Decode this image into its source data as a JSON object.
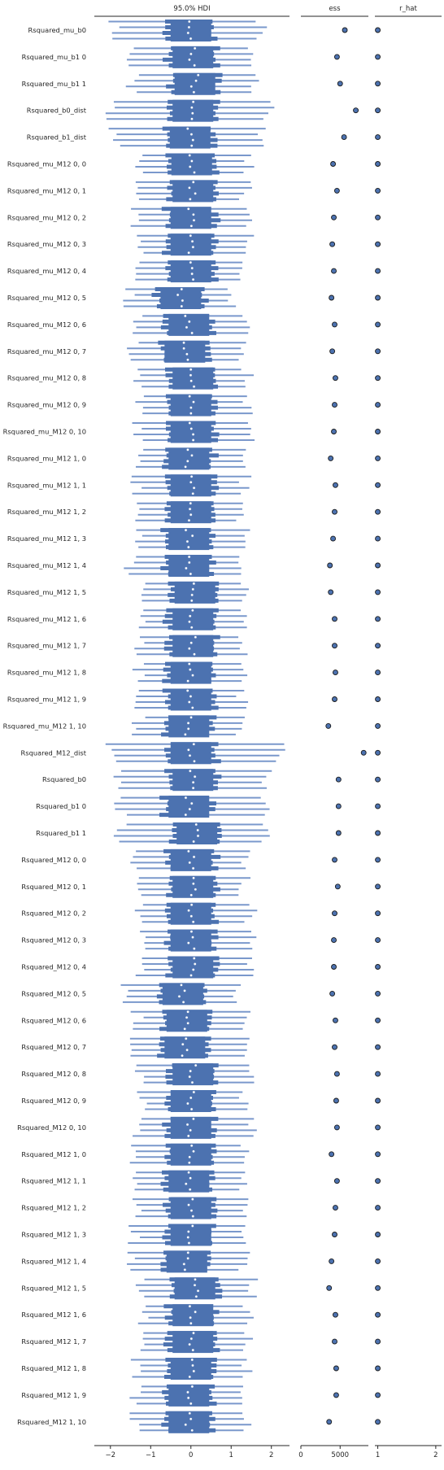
{
  "chart_data": {
    "type": "forest",
    "panels": [
      {
        "title": "95.0% HDI",
        "xticks": [
          -2,
          -1,
          0,
          1,
          2
        ],
        "xlim": [
          -2.4,
          2.45
        ]
      },
      {
        "title": "ess",
        "xticks": [
          0,
          5000
        ],
        "xlim": [
          0,
          8600
        ]
      },
      {
        "title": "r_hat",
        "xticks": [
          1,
          2
        ],
        "xlim": [
          0.95,
          2.1
        ]
      }
    ],
    "colors": {
      "hdi": "#4c72b0",
      "hdi_light": "#7a98cc",
      "median_point": "#ffffff",
      "marker_edge": "#1a1a1a",
      "axis": "#262626"
    },
    "rows": [
      {
        "label": "Rsquared_mu_b0",
        "median": 0.0,
        "hdi": [
          -1.95,
          1.75
        ],
        "ess": 5600,
        "r_hat": 1.0
      },
      {
        "label": "Rsquared_mu_b1 0",
        "median": 0.05,
        "hdi": [
          -1.5,
          1.55
        ],
        "ess": 4600,
        "r_hat": 1.0
      },
      {
        "label": "Rsquared_mu_b1 1",
        "median": 0.1,
        "hdi": [
          -1.45,
          1.55
        ],
        "ess": 5000,
        "r_hat": 1.0
      },
      {
        "label": "Rsquared_b0_dist",
        "median": 0.05,
        "hdi": [
          -2.05,
          1.95
        ],
        "ess": 7000,
        "r_hat": 1.0
      },
      {
        "label": "Rsquared_b1_dist",
        "median": -0.02,
        "hdi": [
          -1.9,
          1.8
        ],
        "ess": 5500,
        "r_hat": 1.0
      },
      {
        "label": "Rsquared_mu_M12 0, 0",
        "median": 0.02,
        "hdi": [
          -1.35,
          1.4
        ],
        "ess": 4100,
        "r_hat": 1.0
      },
      {
        "label": "Rsquared_mu_M12 0, 1",
        "median": 0.05,
        "hdi": [
          -1.2,
          1.35
        ],
        "ess": 4600,
        "r_hat": 1.0
      },
      {
        "label": "Rsquared_mu_M12 0, 2",
        "median": 0.0,
        "hdi": [
          -1.35,
          1.45
        ],
        "ess": 4200,
        "r_hat": 1.0
      },
      {
        "label": "Rsquared_mu_M12 0, 3",
        "median": 0.0,
        "hdi": [
          -1.3,
          1.4
        ],
        "ess": 4000,
        "r_hat": 1.0
      },
      {
        "label": "Rsquared_mu_M12 0, 4",
        "median": 0.0,
        "hdi": [
          -1.25,
          1.35
        ],
        "ess": 4200,
        "r_hat": 1.0
      },
      {
        "label": "Rsquared_mu_M12 0, 5",
        "median": -0.25,
        "hdi": [
          -1.55,
          1.05
        ],
        "ess": 3900,
        "r_hat": 1.0
      },
      {
        "label": "Rsquared_mu_M12 0, 6",
        "median": -0.05,
        "hdi": [
          -1.35,
          1.35
        ],
        "ess": 4300,
        "r_hat": 1.0
      },
      {
        "label": "Rsquared_mu_M12 0, 7",
        "median": -0.15,
        "hdi": [
          -1.45,
          1.3
        ],
        "ess": 4000,
        "r_hat": 1.0
      },
      {
        "label": "Rsquared_mu_M12 0, 8",
        "median": 0.05,
        "hdi": [
          -1.35,
          1.4
        ],
        "ess": 4400,
        "r_hat": 1.0
      },
      {
        "label": "Rsquared_mu_M12 0, 9",
        "median": 0.0,
        "hdi": [
          -1.25,
          1.45
        ],
        "ess": 4300,
        "r_hat": 1.0
      },
      {
        "label": "Rsquared_mu_M12 0, 10",
        "median": 0.0,
        "hdi": [
          -1.3,
          1.55
        ],
        "ess": 4200,
        "r_hat": 1.0
      },
      {
        "label": "Rsquared_mu_M12 1, 0",
        "median": -0.05,
        "hdi": [
          -1.35,
          1.35
        ],
        "ess": 3800,
        "r_hat": 1.0
      },
      {
        "label": "Rsquared_mu_M12 1, 1",
        "median": 0.0,
        "hdi": [
          -1.35,
          1.35
        ],
        "ess": 4400,
        "r_hat": 1.0
      },
      {
        "label": "Rsquared_mu_M12 1, 2",
        "median": 0.0,
        "hdi": [
          -1.35,
          1.3
        ],
        "ess": 4300,
        "r_hat": 1.0
      },
      {
        "label": "Rsquared_mu_M12 1, 3",
        "median": -0.05,
        "hdi": [
          -1.35,
          1.4
        ],
        "ess": 4100,
        "r_hat": 1.0
      },
      {
        "label": "Rsquared_mu_M12 1, 4",
        "median": -0.05,
        "hdi": [
          -1.5,
          1.35
        ],
        "ess": 3700,
        "r_hat": 1.0
      },
      {
        "label": "Rsquared_mu_M12 1, 5",
        "median": 0.1,
        "hdi": [
          -1.15,
          1.4
        ],
        "ess": 3800,
        "r_hat": 1.0
      },
      {
        "label": "Rsquared_mu_M12 1, 6",
        "median": 0.05,
        "hdi": [
          -1.25,
          1.35
        ],
        "ess": 4300,
        "r_hat": 1.0
      },
      {
        "label": "Rsquared_mu_M12 1, 7",
        "median": 0.05,
        "hdi": [
          -1.25,
          1.3
        ],
        "ess": 4300,
        "r_hat": 1.0
      },
      {
        "label": "Rsquared_mu_M12 1, 8",
        "median": 0.0,
        "hdi": [
          -1.3,
          1.25
        ],
        "ess": 4400,
        "r_hat": 1.0
      },
      {
        "label": "Rsquared_mu_M12 1, 9",
        "median": 0.0,
        "hdi": [
          -1.3,
          1.25
        ],
        "ess": 4300,
        "r_hat": 1.0
      },
      {
        "label": "Rsquared_mu_M12 1, 10",
        "median": -0.05,
        "hdi": [
          -1.3,
          1.25
        ],
        "ess": 3500,
        "r_hat": 1.0
      },
      {
        "label": "Rsquared_M12_dist",
        "median": 0.0,
        "hdi": [
          -2.0,
          2.2
        ],
        "ess": 8000,
        "r_hat": 1.0
      },
      {
        "label": "Rsquared_b0",
        "median": 0.05,
        "hdi": [
          -1.75,
          1.85
        ],
        "ess": 4800,
        "r_hat": 1.0
      },
      {
        "label": "Rsquared_b1 0",
        "median": -0.05,
        "hdi": [
          -1.75,
          1.85
        ],
        "ess": 4800,
        "r_hat": 1.0
      },
      {
        "label": "Rsquared_b1 1",
        "median": 0.15,
        "hdi": [
          -1.75,
          1.9
        ],
        "ess": 4800,
        "r_hat": 1.0
      },
      {
        "label": "Rsquared_M12 0, 0",
        "median": 0.0,
        "hdi": [
          -1.35,
          1.4
        ],
        "ess": 4300,
        "r_hat": 1.0
      },
      {
        "label": "Rsquared_M12 0, 1",
        "median": 0.05,
        "hdi": [
          -1.25,
          1.35
        ],
        "ess": 4700,
        "r_hat": 1.0
      },
      {
        "label": "Rsquared_M12 0, 2",
        "median": 0.0,
        "hdi": [
          -1.35,
          1.5
        ],
        "ess": 4300,
        "r_hat": 1.0
      },
      {
        "label": "Rsquared_M12 0, 3",
        "median": 0.0,
        "hdi": [
          -1.3,
          1.55
        ],
        "ess": 4200,
        "r_hat": 1.0
      },
      {
        "label": "Rsquared_M12 0, 4",
        "median": 0.05,
        "hdi": [
          -1.3,
          1.45
        ],
        "ess": 4200,
        "r_hat": 1.0
      },
      {
        "label": "Rsquared_M12 0, 5",
        "median": -0.2,
        "hdi": [
          -1.6,
          1.15
        ],
        "ess": 4000,
        "r_hat": 1.0
      },
      {
        "label": "Rsquared_M12 0, 6",
        "median": -0.1,
        "hdi": [
          -1.35,
          1.35
        ],
        "ess": 4400,
        "r_hat": 1.0
      },
      {
        "label": "Rsquared_M12 0, 7",
        "median": -0.15,
        "hdi": [
          -1.45,
          1.3
        ],
        "ess": 4300,
        "r_hat": 1.0
      },
      {
        "label": "Rsquared_M12 0, 8",
        "median": 0.05,
        "hdi": [
          -1.3,
          1.4
        ],
        "ess": 4600,
        "r_hat": 1.0
      },
      {
        "label": "Rsquared_M12 0, 9",
        "median": 0.0,
        "hdi": [
          -1.25,
          1.35
        ],
        "ess": 4500,
        "r_hat": 1.0
      },
      {
        "label": "Rsquared_M12 0, 10",
        "median": 0.0,
        "hdi": [
          -1.3,
          1.5
        ],
        "ess": 4600,
        "r_hat": 1.0
      },
      {
        "label": "Rsquared_M12 1, 0",
        "median": 0.0,
        "hdi": [
          -1.4,
          1.4
        ],
        "ess": 3900,
        "r_hat": 1.0
      },
      {
        "label": "Rsquared_M12 1, 1",
        "median": -0.05,
        "hdi": [
          -1.3,
          1.35
        ],
        "ess": 4600,
        "r_hat": 1.0
      },
      {
        "label": "Rsquared_M12 1, 2",
        "median": 0.0,
        "hdi": [
          -1.3,
          1.3
        ],
        "ess": 4400,
        "r_hat": 1.0
      },
      {
        "label": "Rsquared_M12 1, 3",
        "median": 0.0,
        "hdi": [
          -1.4,
          1.35
        ],
        "ess": 4300,
        "r_hat": 1.0
      },
      {
        "label": "Rsquared_M12 1, 4",
        "median": -0.1,
        "hdi": [
          -1.5,
          1.35
        ],
        "ess": 3900,
        "r_hat": 1.0
      },
      {
        "label": "Rsquared_M12 1, 5",
        "median": 0.1,
        "hdi": [
          -1.25,
          1.55
        ],
        "ess": 3600,
        "r_hat": 1.0
      },
      {
        "label": "Rsquared_M12 1, 6",
        "median": 0.05,
        "hdi": [
          -1.2,
          1.45
        ],
        "ess": 4400,
        "r_hat": 1.0
      },
      {
        "label": "Rsquared_M12 1, 7",
        "median": 0.05,
        "hdi": [
          -1.3,
          1.4
        ],
        "ess": 4300,
        "r_hat": 1.0
      },
      {
        "label": "Rsquared_M12 1, 8",
        "median": 0.0,
        "hdi": [
          -1.35,
          1.4
        ],
        "ess": 4500,
        "r_hat": 1.0
      },
      {
        "label": "Rsquared_M12 1, 9",
        "median": -0.05,
        "hdi": [
          -1.4,
          1.3
        ],
        "ess": 4500,
        "r_hat": 1.0
      },
      {
        "label": "Rsquared_M12 1, 10",
        "median": -0.05,
        "hdi": [
          -1.4,
          1.35
        ],
        "ess": 3600,
        "r_hat": 1.0
      }
    ]
  }
}
